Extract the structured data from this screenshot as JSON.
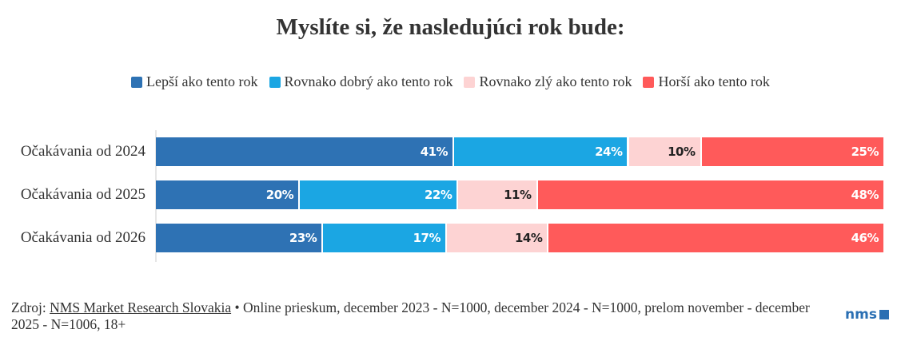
{
  "chart_data": {
    "type": "bar",
    "orientation": "horizontal",
    "stacked": true,
    "title": "Myslíte si, že nasledujúci rok bude:",
    "categories": [
      "Očakávania od 2024",
      "Očakávania od 2025",
      "Očakávania od 2026"
    ],
    "series": [
      {
        "name": "Lepší ako tento rok",
        "color": "#2e72b4",
        "label_color": "#ffffff",
        "values": [
          41,
          20,
          23
        ]
      },
      {
        "name": "Rovnako dobrý ako tento rok",
        "color": "#1ba6e3",
        "label_color": "#ffffff",
        "values": [
          24,
          22,
          17
        ]
      },
      {
        "name": "Rovnako zlý ako tento rok",
        "color": "#fdd3d3",
        "label_color": "#222222",
        "values": [
          10,
          11,
          14
        ]
      },
      {
        "name": "Horší ako tento rok",
        "color": "#ff5a5a",
        "label_color": "#ffffff",
        "values": [
          25,
          48,
          46
        ]
      }
    ],
    "value_suffix": "%",
    "legend_position": "top",
    "grid": false
  },
  "footer": {
    "source_prefix": "Zdroj: ",
    "source_link": "NMS Market Research Slovakia",
    "source_rest": " • Online prieskum, december 2023 - N=1000, december 2024 - N=1000, prelom november - december 2025 - N=1006, 18+"
  },
  "logo": {
    "text": "nms"
  }
}
